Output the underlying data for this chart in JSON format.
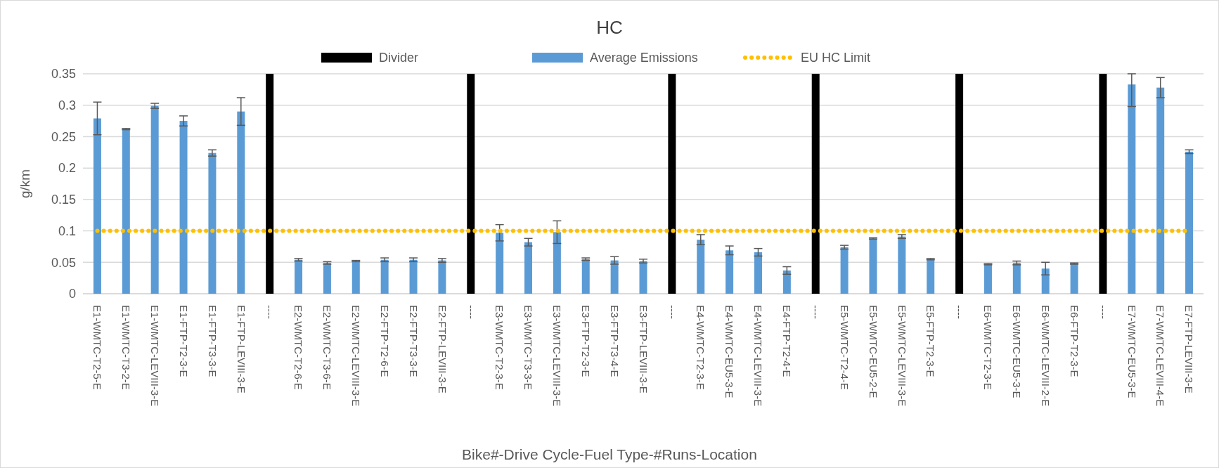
{
  "chart_data": {
    "type": "bar",
    "title": "HC",
    "xlabel": "Bike#-Drive Cycle-Fuel Type-#Runs-Location",
    "ylabel": "g/km",
    "categories": [
      "E1-WMTC-T2-5-E",
      "E1-WMTC-T3-2-E",
      "E1-WMTC-LEVIII-3-E",
      "E1-FTP-T2-3-E",
      "E1-FTP-T3-3-E",
      "E1-FTP-LEVIII-3-E",
      "----",
      "E2-WMTC-T2-6-E",
      "E2-WMTC-T3-6-E",
      "E2-WMTC-LEVIII-3-E",
      "E2-FTP-T2-6-E",
      "E2-FTP-T3-3-E",
      "E2-FTP-LEVIII-3-E",
      "----",
      "E3-WMTC-T2-3-E",
      "E3-WMTC-T3-3-E",
      "E3-WMTC-LEVIII-3-E",
      "E3-FTP-T2-3-E",
      "E3-FTP-T3-4-E",
      "E3-FTP-LEVIII-3-E",
      "----",
      "E4-WMTC-T2-3-E",
      "E4-WMTC-EU5-3-E",
      "E4-WMTC-LEVIII-3-E",
      "E4-FTP-T2-4-E",
      "----",
      "E5-WMTC-T2-4-E",
      "E5-WMTC-EU5-2-E",
      "E5-WMTC-LEVIII-3-E",
      "E5-FTP-T2-3-E",
      "----",
      "E6-WMTC-T2-3-E",
      "E6-WMTC-EU5-3-E",
      "E6-WMTC-LEVIII-2-E",
      "E6-FTP-T2-3-E",
      "----",
      "E7-WMTC-EU5-3-E",
      "E7-WMTC-LEVIII-4-E",
      "E7-FTP-LEVIII-3-E"
    ],
    "series": [
      {
        "name": "Divider",
        "color": "#000000",
        "values": [
          null,
          null,
          null,
          null,
          null,
          null,
          0.35,
          null,
          null,
          null,
          null,
          null,
          null,
          0.35,
          null,
          null,
          null,
          null,
          null,
          null,
          0.35,
          null,
          null,
          null,
          null,
          0.35,
          null,
          null,
          null,
          null,
          0.35,
          null,
          null,
          null,
          null,
          0.35,
          null,
          null,
          null
        ]
      },
      {
        "name": "Average Emissions",
        "color": "#5b9bd5",
        "values": [
          0.279,
          0.262,
          0.299,
          0.275,
          0.224,
          0.29,
          null,
          0.054,
          0.049,
          0.052,
          0.054,
          0.054,
          0.053,
          null,
          0.097,
          0.082,
          0.098,
          0.055,
          0.053,
          0.052,
          null,
          0.086,
          0.069,
          0.066,
          0.037,
          null,
          0.074,
          0.088,
          0.091,
          0.055,
          null,
          0.047,
          0.049,
          0.04,
          0.048,
          null,
          0.333,
          0.328,
          0.226
        ],
        "errors": [
          0.026,
          0.001,
          0.004,
          0.008,
          0.005,
          0.022,
          null,
          0.002,
          0.002,
          0.001,
          0.003,
          0.003,
          0.003,
          null,
          0.013,
          0.006,
          0.018,
          0.002,
          0.006,
          0.003,
          null,
          0.008,
          0.007,
          0.006,
          0.006,
          null,
          0.003,
          0.001,
          0.003,
          0.001,
          null,
          0.001,
          0.003,
          0.01,
          0.001,
          null,
          [
            0.298,
            0.35
          ],
          0.016,
          0.003
        ]
      },
      {
        "name": "EU HC Limit",
        "type": "line",
        "color": "#ffc000",
        "line_style": "dotted",
        "marker": "none",
        "values": [
          0.1,
          0.1,
          0.1,
          0.1,
          0.1,
          0.1,
          0.1,
          0.1,
          0.1,
          0.1,
          0.1,
          0.1,
          0.1,
          0.1,
          0.1,
          0.1,
          0.1,
          0.1,
          0.1,
          0.1,
          0.1,
          0.1,
          0.1,
          0.1,
          0.1,
          0.1,
          0.1,
          0.1,
          0.1,
          0.1,
          0.1,
          0.1,
          0.1,
          0.1,
          0.1,
          0.1,
          0.1,
          0.1,
          0.1
        ]
      }
    ],
    "ylim": [
      0,
      0.35
    ],
    "yticks": [
      0,
      0.05,
      0.1,
      0.15,
      0.2,
      0.25,
      0.3,
      0.35
    ],
    "grid": "y",
    "legend": "top"
  }
}
